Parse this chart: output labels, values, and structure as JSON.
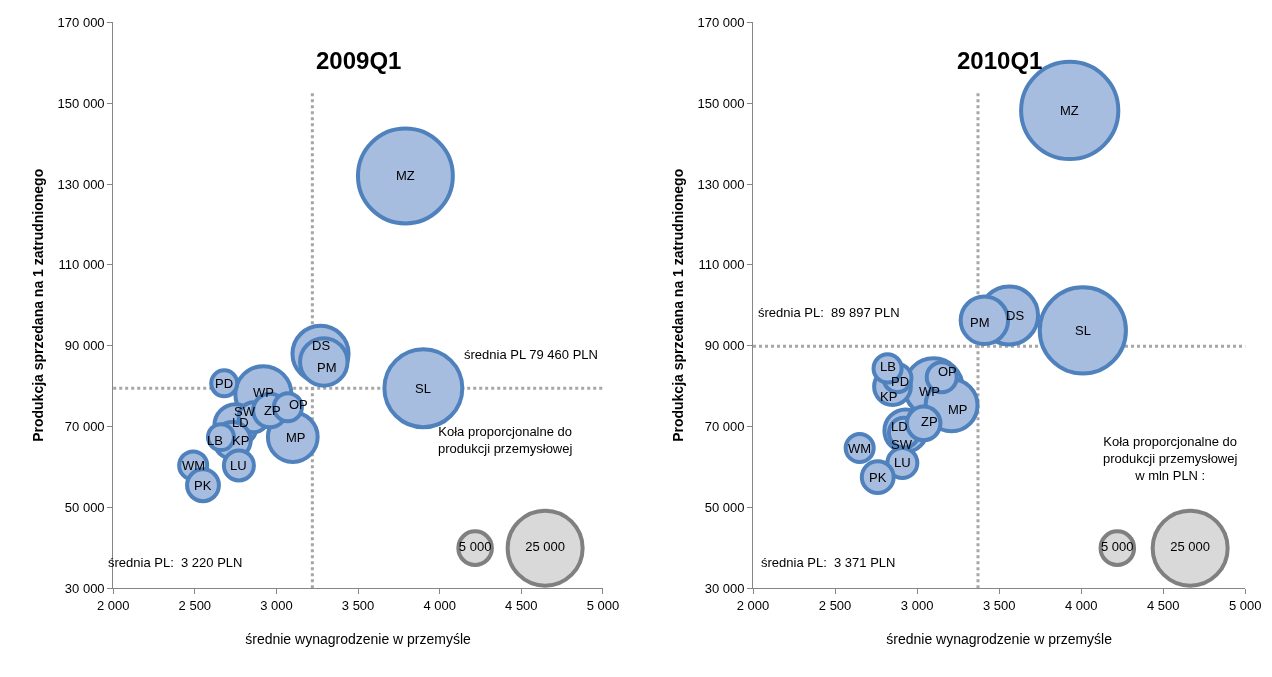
{
  "chart_data": [
    {
      "type": "bubble",
      "title": "2009Q1",
      "xlabel": "średnie wynagrodzenie w przemyśle",
      "ylabel": "Produkcja sprzedana na 1 zatrudnionego",
      "xlim": [
        2000,
        5000
      ],
      "ylim": [
        30000,
        170000
      ],
      "xticks": [
        {
          "value": 2000,
          "label": "2 000"
        },
        {
          "value": 2500,
          "label": "2 500"
        },
        {
          "value": 3000,
          "label": "3 000"
        },
        {
          "value": 3500,
          "label": "3 500"
        },
        {
          "value": 4000,
          "label": "4 000"
        },
        {
          "value": 4500,
          "label": "4 500"
        },
        {
          "value": 5000,
          "label": "5 000"
        }
      ],
      "yticks": [
        {
          "value": 30000,
          "label": "30 000"
        },
        {
          "value": 50000,
          "label": "50 000"
        },
        {
          "value": 70000,
          "label": "70 000"
        },
        {
          "value": 90000,
          "label": "90 000"
        },
        {
          "value": 110000,
          "label": "110 000"
        },
        {
          "value": 130000,
          "label": "130 000"
        },
        {
          "value": 150000,
          "label": "150 000"
        },
        {
          "value": 170000,
          "label": "170 000"
        }
      ],
      "grid": false,
      "legend": false,
      "size_legend": [
        5000,
        25000
      ],
      "ref_lines": [
        {
          "axis": "y",
          "value": 79460,
          "label": "średnia PL 79 460 PLN",
          "color": "#a6a6a6",
          "line_style": "dotted"
        },
        {
          "axis": "x",
          "value": 3220,
          "color": "#a6a6a6",
          "line_style": "dotted"
        }
      ],
      "annotations": [
        "średnia PL:  3 220 PLN",
        "Koła proporcjonalne do\nprodukcji przemysłowej"
      ],
      "series": [
        {
          "name": "MZ",
          "color": "#a7bde0",
          "x": [
            3790
          ],
          "values": [
            132000
          ],
          "sizes": [
            40000
          ]
        },
        {
          "name": "SL",
          "color": "#a7bde0",
          "x": [
            3900
          ],
          "values": [
            79500
          ],
          "sizes": [
            27000
          ]
        },
        {
          "name": "WP",
          "color": "#a7bde0",
          "x": [
            2920
          ],
          "values": [
            78000
          ],
          "sizes": [
            14000
          ]
        },
        {
          "name": "DS",
          "color": "#a7bde0",
          "x": [
            3270
          ],
          "values": [
            88000
          ],
          "sizes": [
            14000
          ]
        },
        {
          "name": "PM",
          "color": "#a7bde0",
          "x": [
            3290
          ],
          "values": [
            86000
          ],
          "sizes": [
            10000
          ]
        },
        {
          "name": "MP",
          "color": "#a7bde0",
          "x": [
            3100
          ],
          "values": [
            67400
          ],
          "sizes": [
            11000
          ]
        },
        {
          "name": "LD",
          "color": "#a7bde0",
          "x": [
            2750
          ],
          "values": [
            70300
          ],
          "sizes": [
            8000
          ]
        },
        {
          "name": "SW",
          "color": "#a7bde0",
          "x": [
            2860
          ],
          "values": [
            72300
          ],
          "sizes": [
            4000
          ]
        },
        {
          "name": "ZP",
          "color": "#a7bde0",
          "x": [
            2960
          ],
          "values": [
            74000
          ],
          "sizes": [
            5000
          ]
        },
        {
          "name": "OP",
          "color": "#a7bde0",
          "x": [
            3070
          ],
          "values": [
            74800
          ],
          "sizes": [
            3500
          ]
        },
        {
          "name": "KP",
          "color": "#a7bde0",
          "x": [
            2730
          ],
          "values": [
            66600
          ],
          "sizes": [
            6000
          ]
        },
        {
          "name": "LB",
          "color": "#a7bde0",
          "x": [
            2660
          ],
          "values": [
            67400
          ],
          "sizes": [
            3000
          ]
        },
        {
          "name": "PD",
          "color": "#a7bde0",
          "x": [
            2680
          ],
          "values": [
            80700
          ],
          "sizes": [
            3000
          ]
        },
        {
          "name": "LU",
          "color": "#a7bde0",
          "x": [
            2770
          ],
          "values": [
            60400
          ],
          "sizes": [
            4000
          ]
        },
        {
          "name": "WM",
          "color": "#a7bde0",
          "x": [
            2490
          ],
          "values": [
            60400
          ],
          "sizes": [
            3500
          ]
        },
        {
          "name": "PK",
          "color": "#a7bde0",
          "x": [
            2550
          ],
          "values": [
            55500
          ],
          "sizes": [
            4500
          ]
        }
      ]
    },
    {
      "type": "bubble",
      "title": "2010Q1",
      "xlabel": "średnie wynagrodzenie w przemyśle",
      "ylabel": "Produkcja sprzedana na 1 zatrudnionego",
      "xlim": [
        2000,
        5000
      ],
      "ylim": [
        30000,
        170000
      ],
      "xticks": [
        {
          "value": 2000,
          "label": "2 000"
        },
        {
          "value": 2500,
          "label": "2 500"
        },
        {
          "value": 3000,
          "label": "3 000"
        },
        {
          "value": 3500,
          "label": "3 500"
        },
        {
          "value": 4000,
          "label": "4 000"
        },
        {
          "value": 4500,
          "label": "4 500"
        },
        {
          "value": 5000,
          "label": "5 000"
        }
      ],
      "yticks": [
        {
          "value": 30000,
          "label": "30 000"
        },
        {
          "value": 50000,
          "label": "50 000"
        },
        {
          "value": 70000,
          "label": "70 000"
        },
        {
          "value": 90000,
          "label": "90 000"
        },
        {
          "value": 110000,
          "label": "110 000"
        },
        {
          "value": 130000,
          "label": "130 000"
        },
        {
          "value": 150000,
          "label": "150 000"
        },
        {
          "value": 170000,
          "label": "170 000"
        }
      ],
      "grid": false,
      "legend": false,
      "size_legend": [
        5000,
        25000
      ],
      "ref_lines": [
        {
          "axis": "y",
          "value": 89897,
          "label": "średnia PL:  89 897 PLN",
          "color": "#a6a6a6",
          "line_style": "dotted"
        },
        {
          "axis": "x",
          "value": 3371,
          "color": "#a6a6a6",
          "line_style": "dotted"
        }
      ],
      "annotations": [
        "średnia PL:  3 371 PLN",
        "Koła proporcjonalne do\nprodukcji przemysłowej\nw mln PLN :"
      ],
      "series": [
        {
          "name": "MZ",
          "color": "#a7bde0",
          "x": [
            3930
          ],
          "values": [
            148200
          ],
          "sizes": [
            42000
          ]
        },
        {
          "name": "SL",
          "color": "#a7bde0",
          "x": [
            4010
          ],
          "values": [
            93800
          ],
          "sizes": [
            33000
          ]
        },
        {
          "name": "WP",
          "color": "#a7bde0",
          "x": [
            3100
          ],
          "values": [
            79700
          ],
          "sizes": [
            15000
          ]
        },
        {
          "name": "DS",
          "color": "#a7bde0",
          "x": [
            3560
          ],
          "values": [
            97500
          ],
          "sizes": [
            15000
          ]
        },
        {
          "name": "PM",
          "color": "#a7bde0",
          "x": [
            3410
          ],
          "values": [
            96300
          ],
          "sizes": [
            10000
          ]
        },
        {
          "name": "MP",
          "color": "#a7bde0",
          "x": [
            3210
          ],
          "values": [
            75300
          ],
          "sizes": [
            12000
          ]
        },
        {
          "name": "LD",
          "color": "#a7bde0",
          "x": [
            2930
          ],
          "values": [
            69000
          ],
          "sizes": [
            8000
          ]
        },
        {
          "name": "SW",
          "color": "#a7bde0",
          "x": [
            2920
          ],
          "values": [
            68500
          ],
          "sizes": [
            4000
          ]
        },
        {
          "name": "ZP",
          "color": "#a7bde0",
          "x": [
            3040
          ],
          "values": [
            70800
          ],
          "sizes": [
            5000
          ]
        },
        {
          "name": "OP",
          "color": "#a7bde0",
          "x": [
            3150
          ],
          "values": [
            82200
          ],
          "sizes": [
            4000
          ]
        },
        {
          "name": "KP",
          "color": "#a7bde0",
          "x": [
            2850
          ],
          "values": [
            79900
          ],
          "sizes": [
            6000
          ]
        },
        {
          "name": "PD",
          "color": "#a7bde0",
          "x": [
            2880
          ],
          "values": [
            82000
          ],
          "sizes": [
            3500
          ]
        },
        {
          "name": "LB",
          "color": "#a7bde0",
          "x": [
            2820
          ],
          "values": [
            84400
          ],
          "sizes": [
            3500
          ]
        },
        {
          "name": "LU",
          "color": "#a7bde0",
          "x": [
            2910
          ],
          "values": [
            61000
          ],
          "sizes": [
            4000
          ]
        },
        {
          "name": "WM",
          "color": "#a7bde0",
          "x": [
            2650
          ],
          "values": [
            64700
          ],
          "sizes": [
            3500
          ]
        },
        {
          "name": "PK",
          "color": "#a7bde0",
          "x": [
            2760
          ],
          "values": [
            57500
          ],
          "sizes": [
            4500
          ]
        }
      ]
    }
  ]
}
